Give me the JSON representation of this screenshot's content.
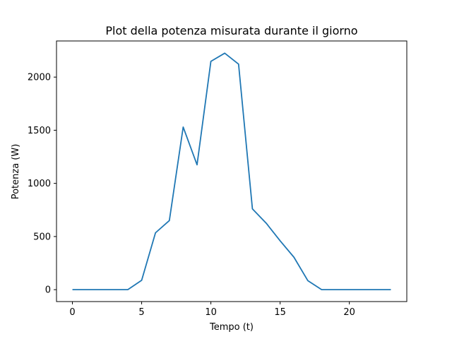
{
  "chart_data": {
    "type": "line",
    "title": "Plot della potenza misurata durante il giorno",
    "xlabel": "Tempo (t)",
    "ylabel": "Potenza (W)",
    "xlim": [
      -1.15,
      24.15
    ],
    "ylim": [
      -112,
      2340
    ],
    "xticks": [
      0,
      5,
      10,
      15,
      20
    ],
    "yticks": [
      0,
      500,
      1000,
      1500,
      2000
    ],
    "xtick_labels": [
      "0",
      "5",
      "10",
      "15",
      "20"
    ],
    "ytick_labels": [
      "0",
      "500",
      "1000",
      "1500",
      "2000"
    ],
    "grid": false,
    "series": [
      {
        "color": "#1f77b4",
        "x": [
          0,
          1,
          2,
          3,
          4,
          5,
          6,
          7,
          8,
          9,
          10,
          11,
          12,
          13,
          14,
          15,
          16,
          17,
          18,
          19,
          20,
          21,
          22,
          23
        ],
        "values": [
          0,
          0,
          0,
          0,
          0,
          88,
          535,
          650,
          1530,
          1175,
          2148,
          2225,
          2122,
          760,
          625,
          460,
          305,
          85,
          0,
          0,
          0,
          0,
          0,
          0
        ]
      }
    ]
  }
}
